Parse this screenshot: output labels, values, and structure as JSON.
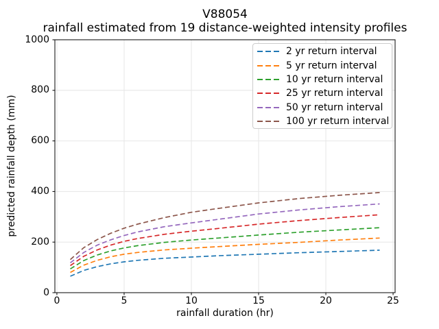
{
  "figure": {
    "background": "#ffffff",
    "spine_color": "#000000",
    "text_color": "#000000"
  },
  "chart_data": {
    "type": "line",
    "title": "V88054",
    "subtitle": "rainfall estimated from 19 distance-weighted intensity profiles",
    "xlabel": "rainfall duration (hr)",
    "ylabel": "predicted rainfall depth (mm)",
    "xlim": [
      -0.15,
      25.15
    ],
    "ylim": [
      0,
      1000
    ],
    "xticks": [
      0,
      5,
      10,
      15,
      20,
      25
    ],
    "yticks": [
      0,
      200,
      400,
      600,
      800,
      1000
    ],
    "grid": true,
    "grid_color": "#e6e6e6",
    "line_style": "dashed",
    "legend_location": "upper right",
    "x": [
      1,
      2,
      3,
      4,
      5,
      6,
      8,
      10,
      12,
      15,
      18,
      21,
      24
    ],
    "series": [
      {
        "name": "2 yr return interval",
        "color": "#1f77b4",
        "values": [
          65,
          88,
          103,
          114,
          122,
          128,
          136,
          141,
          146,
          152,
          158,
          163,
          168
        ]
      },
      {
        "name": "5 yr return interval",
        "color": "#ff7f0e",
        "values": [
          80,
          109,
          128,
          142,
          152,
          159,
          169,
          176,
          182,
          191,
          199,
          208,
          216
        ]
      },
      {
        "name": "10 yr return interval",
        "color": "#2ca02c",
        "values": [
          94,
          127,
          149,
          165,
          177,
          186,
          199,
          208,
          216,
          228,
          239,
          248,
          257
        ]
      },
      {
        "name": "25 yr return interval",
        "color": "#d62728",
        "values": [
          107,
          144,
          169,
          188,
          203,
          214,
          231,
          243,
          254,
          271,
          285,
          297,
          308
        ]
      },
      {
        "name": "50 yr return interval",
        "color": "#9467bd",
        "values": [
          118,
          159,
          188,
          209,
          226,
          240,
          261,
          276,
          290,
          311,
          327,
          340,
          351
        ]
      },
      {
        "name": "100 yr return interval",
        "color": "#8c564b",
        "values": [
          131,
          178,
          210,
          235,
          255,
          271,
          297,
          318,
          333,
          355,
          372,
          385,
          396
        ]
      }
    ]
  }
}
